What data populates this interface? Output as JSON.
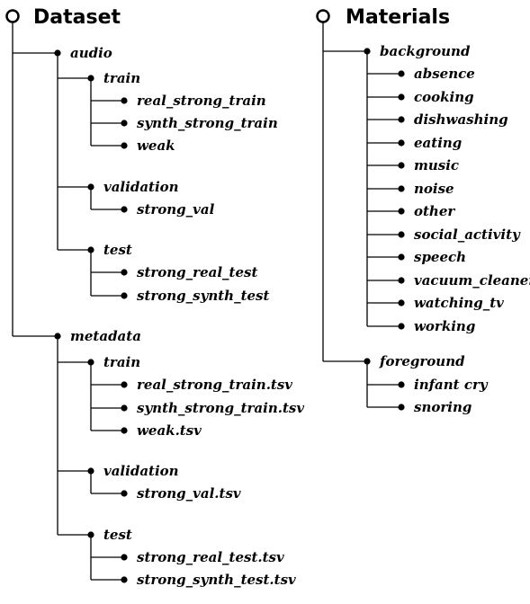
{
  "trees": [
    {
      "label": "Dataset",
      "children": [
        {
          "label": "audio",
          "children": [
            {
              "label": "train",
              "children": [
                {
                  "label": "real_strong_train"
                },
                {
                  "label": "synth_strong_train"
                },
                {
                  "label": "weak"
                }
              ]
            },
            {
              "label": "validation",
              "children": [
                {
                  "label": "strong_val"
                }
              ]
            },
            {
              "label": "test",
              "children": [
                {
                  "label": "strong_real_test"
                },
                {
                  "label": "strong_synth_test"
                }
              ]
            }
          ]
        },
        {
          "label": "metadata",
          "children": [
            {
              "label": "train",
              "children": [
                {
                  "label": "real_strong_train.tsv"
                },
                {
                  "label": "synth_strong_train.tsv"
                },
                {
                  "label": "weak.tsv"
                }
              ]
            },
            {
              "label": "validation",
              "children": [
                {
                  "label": "strong_val.tsv"
                }
              ]
            },
            {
              "label": "test",
              "children": [
                {
                  "label": "strong_real_test.tsv"
                },
                {
                  "label": "strong_synth_test.tsv"
                }
              ]
            }
          ]
        }
      ]
    },
    {
      "label": "Materials",
      "children": [
        {
          "label": "background",
          "children": [
            {
              "label": "absence"
            },
            {
              "label": "cooking"
            },
            {
              "label": "dishwashing"
            },
            {
              "label": "eating"
            },
            {
              "label": "music"
            },
            {
              "label": "noise"
            },
            {
              "label": "other"
            },
            {
              "label": "social_activity"
            },
            {
              "label": "speech"
            },
            {
              "label": "vacuum_cleaner"
            },
            {
              "label": "watching_tv"
            },
            {
              "label": "working"
            }
          ]
        },
        {
          "label": "foreground",
          "children": [
            {
              "label": "infant cry"
            },
            {
              "label": "snoring"
            }
          ]
        }
      ]
    }
  ]
}
